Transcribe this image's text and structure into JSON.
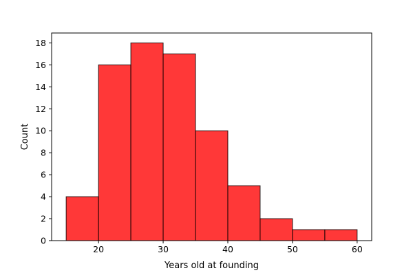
{
  "chart_data": {
    "type": "bar",
    "subtype": "histogram",
    "bins": [
      {
        "start": 15,
        "end": 20,
        "count": 4
      },
      {
        "start": 20,
        "end": 25,
        "count": 16
      },
      {
        "start": 25,
        "end": 30,
        "count": 18
      },
      {
        "start": 30,
        "end": 35,
        "count": 17
      },
      {
        "start": 35,
        "end": 40,
        "count": 10
      },
      {
        "start": 40,
        "end": 45,
        "count": 5
      },
      {
        "start": 45,
        "end": 50,
        "count": 2
      },
      {
        "start": 50,
        "end": 55,
        "count": 1
      },
      {
        "start": 55,
        "end": 60,
        "count": 1
      }
    ],
    "xlabel": "Years old at founding",
    "ylabel": "Count",
    "xlim": [
      12.75,
      62.25
    ],
    "ylim": [
      0,
      18.9
    ],
    "xticks": [
      20,
      30,
      40,
      50,
      60
    ],
    "yticks": [
      0,
      2,
      4,
      6,
      8,
      10,
      12,
      14,
      16,
      18
    ],
    "bar_color": "#ff0000",
    "bar_edge_color": "#000000",
    "grid": false,
    "legend": false
  }
}
